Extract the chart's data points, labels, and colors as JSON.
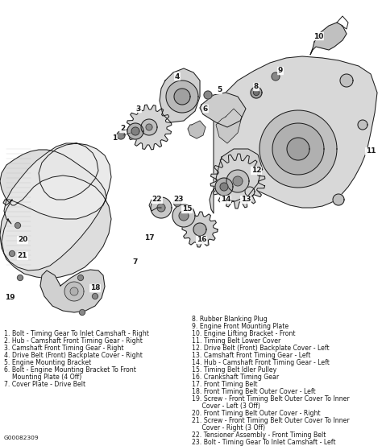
{
  "bg_color": "#ffffff",
  "fig_width": 4.74,
  "fig_height": 5.54,
  "dpi": 100,
  "legend_left": [
    "1. Bolt - Timing Gear To Inlet Camshaft - Right",
    "2. Hub - Camshaft Front Timing Gear - Right",
    "3. Camshaft Front Timing Gear - Right",
    "4. Drive Belt (Front) Backplate Cover - Right",
    "5. Engine Mounting Bracket",
    "6. Bolt - Engine Mounting Bracket To Front",
    "    Mounting Plate (4 Off)",
    "7. Cover Plate - Drive Belt"
  ],
  "legend_right_8to11": [
    "8. Rubber Blanking Plug",
    "9. Engine Front Mounting Plate",
    "10. Engine Lifting Bracket - Front",
    "11. Timing Belt Lower Cover"
  ],
  "legend_right_12on": [
    "12. Drive Belt (Front) Backplate Cover - Left",
    "13. Camshaft Front Timing Gear - Left",
    "14. Hub - Camshaft Front Timing Gear - Left",
    "15. Timing Belt Idler Pulley",
    "16. Crankshaft Timing Gear",
    "17. Front Timing Belt",
    "18. Front Timing Belt Outer Cover - Left",
    "19. Screw - Front Timing Belt Outer Cover To Inner",
    "     Cover - Left (3 Off)",
    "20. Front Timing Belt Outer Cover - Right",
    "21. Screw - Front Timing Belt Outer Cover To Inner",
    "     Cover - Right (3 Off)",
    "22. Tensioner Assembly - Front Timing Belt",
    "23. Bolt - Timing Gear To Inlet Camshaft - Left"
  ],
  "footer": "G00082309",
  "text_color": "#1a1a1a",
  "line_color": "#1a1a1a",
  "gray_fill": "#c8c8c8",
  "dark_gray": "#888888",
  "light_gray": "#e0e0e0",
  "legend_fontsize": 5.6,
  "footer_fontsize": 5.4,
  "num_label_fontsize": 6.5
}
